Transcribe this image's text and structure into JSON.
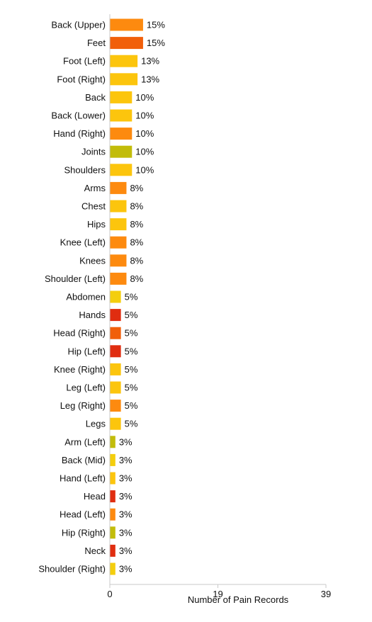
{
  "chart_data": {
    "type": "bar",
    "orientation": "horizontal",
    "xlabel": "Number of Pain Records",
    "ylabel": "",
    "xlim": [
      0,
      39
    ],
    "xticks": [
      {
        "value": 0,
        "label": "0"
      },
      {
        "value": 19.5,
        "label": "19"
      },
      {
        "value": 39,
        "label": "39"
      }
    ],
    "grid": false,
    "colors": {
      "red": "#e02d10",
      "dark_orange": "#f15f0a",
      "orange": "#fd8a0f",
      "amber": "#fcc50d",
      "yellow": "#f4ce0d",
      "olive": "#c2bc0a",
      "axis": "#c8c8c8"
    },
    "bars": [
      {
        "category": "Back (Upper)",
        "value": 6,
        "label": "15%",
        "color": "orange"
      },
      {
        "category": "Feet",
        "value": 6,
        "label": "15%",
        "color": "dark_orange"
      },
      {
        "category": "Foot (Left)",
        "value": 5,
        "label": "13%",
        "color": "amber"
      },
      {
        "category": "Foot (Right)",
        "value": 5,
        "label": "13%",
        "color": "amber"
      },
      {
        "category": "Back",
        "value": 4,
        "label": "10%",
        "color": "amber"
      },
      {
        "category": "Back (Lower)",
        "value": 4,
        "label": "10%",
        "color": "amber"
      },
      {
        "category": "Hand (Right)",
        "value": 4,
        "label": "10%",
        "color": "orange"
      },
      {
        "category": "Joints",
        "value": 4,
        "label": "10%",
        "color": "olive"
      },
      {
        "category": "Shoulders",
        "value": 4,
        "label": "10%",
        "color": "amber"
      },
      {
        "category": "Arms",
        "value": 3,
        "label": "8%",
        "color": "orange"
      },
      {
        "category": "Chest",
        "value": 3,
        "label": "8%",
        "color": "amber"
      },
      {
        "category": "Hips",
        "value": 3,
        "label": "8%",
        "color": "amber"
      },
      {
        "category": "Knee (Left)",
        "value": 3,
        "label": "8%",
        "color": "orange"
      },
      {
        "category": "Knees",
        "value": 3,
        "label": "8%",
        "color": "orange"
      },
      {
        "category": "Shoulder (Left)",
        "value": 3,
        "label": "8%",
        "color": "orange"
      },
      {
        "category": "Abdomen",
        "value": 2,
        "label": "5%",
        "color": "yellow"
      },
      {
        "category": "Hands",
        "value": 2,
        "label": "5%",
        "color": "red"
      },
      {
        "category": "Head (Right)",
        "value": 2,
        "label": "5%",
        "color": "dark_orange"
      },
      {
        "category": "Hip (Left)",
        "value": 2,
        "label": "5%",
        "color": "red"
      },
      {
        "category": "Knee (Right)",
        "value": 2,
        "label": "5%",
        "color": "amber"
      },
      {
        "category": "Leg (Left)",
        "value": 2,
        "label": "5%",
        "color": "amber"
      },
      {
        "category": "Leg (Right)",
        "value": 2,
        "label": "5%",
        "color": "orange"
      },
      {
        "category": "Legs",
        "value": 2,
        "label": "5%",
        "color": "amber"
      },
      {
        "category": "Arm (Left)",
        "value": 1,
        "label": "3%",
        "color": "olive"
      },
      {
        "category": "Back (Mid)",
        "value": 1,
        "label": "3%",
        "color": "yellow"
      },
      {
        "category": "Hand (Left)",
        "value": 1,
        "label": "3%",
        "color": "amber"
      },
      {
        "category": "Head",
        "value": 1,
        "label": "3%",
        "color": "red"
      },
      {
        "category": "Head (Left)",
        "value": 1,
        "label": "3%",
        "color": "orange"
      },
      {
        "category": "Hip (Right)",
        "value": 1,
        "label": "3%",
        "color": "olive"
      },
      {
        "category": "Neck",
        "value": 1,
        "label": "3%",
        "color": "red"
      },
      {
        "category": "Shoulder (Right)",
        "value": 1,
        "label": "3%",
        "color": "yellow"
      }
    ]
  }
}
